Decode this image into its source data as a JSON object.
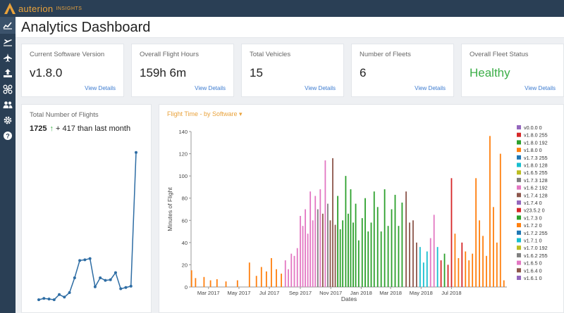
{
  "brand": {
    "name": "auterion",
    "sub": "INSIGHTS"
  },
  "page": {
    "title": "Analytics Dashboard"
  },
  "nav": [
    "analytics-icon",
    "flights-icon",
    "plane-icon",
    "upload-icon",
    "drone-icon",
    "users-icon",
    "gear-icon",
    "help-icon"
  ],
  "kpis": [
    {
      "label": "Current Software Version",
      "value": "v1.8.0",
      "link": "View Details"
    },
    {
      "label": "Overall Flight Hours",
      "value": "159h 6m",
      "link": "View Details"
    },
    {
      "label": "Total Vehicles",
      "value": "15",
      "link": "View Details"
    },
    {
      "label": "Number of Fleets",
      "value": "6",
      "link": "View Details"
    },
    {
      "label": "Overall Fleet Status",
      "value": "Healthy",
      "link": "View Details",
      "color": "#3cae48"
    }
  ],
  "flights": {
    "title": "Total Number of Flights",
    "total": "1725",
    "arrow": "↑",
    "delta": "+ 417 than last month",
    "color": "#2e6da4"
  },
  "flight_time": {
    "title": "Flight Time - by Software ▾",
    "accent": "#e9a23b"
  },
  "chart_data": [
    {
      "type": "line",
      "title": "Total Number of Flights",
      "values": [
        1,
        3,
        2,
        1,
        9,
        5,
        12,
        35,
        62,
        63,
        65,
        21,
        35,
        31,
        32,
        43,
        18,
        20,
        22,
        230
      ],
      "ylim": [
        0,
        245
      ]
    },
    {
      "type": "bar",
      "title": "Flight Time - by Software",
      "xlabel": "Dates",
      "ylabel": "Minutes of Flight",
      "ylim": [
        0,
        140
      ],
      "yticks": [
        0,
        20,
        40,
        60,
        80,
        100,
        120,
        140
      ],
      "x_ticks": [
        "Mar 2017",
        "May 2017",
        "Jul 2017",
        "Sep 2017",
        "Nov 2017",
        "Jan 2018",
        "Mar 2018",
        "May 2018",
        "Jul 2018"
      ],
      "x_range": [
        "2017-01-25",
        "2018-10-20"
      ],
      "legend_position": "right",
      "legend": [
        {
          "name": "v0.0.0 0",
          "color": "#9467bd"
        },
        {
          "name": "v1.8.0 255",
          "color": "#d62728"
        },
        {
          "name": "v1.8.0 192",
          "color": "#2ca02c"
        },
        {
          "name": "v1.8.0 0",
          "color": "#ff7f0e"
        },
        {
          "name": "v1.7.3 255",
          "color": "#1f77b4"
        },
        {
          "name": "v1.8.0 128",
          "color": "#17becf"
        },
        {
          "name": "v1.6.5 255",
          "color": "#bcbd22"
        },
        {
          "name": "v1.7.3 128",
          "color": "#7f7f7f"
        },
        {
          "name": "v1.6.2 192",
          "color": "#e377c2"
        },
        {
          "name": "v1.7.4 128",
          "color": "#8c564b"
        },
        {
          "name": "v1.7.4 0",
          "color": "#9467bd"
        },
        {
          "name": "v23.5.2 0",
          "color": "#d62728"
        },
        {
          "name": "v1.7.3 0",
          "color": "#2ca02c"
        },
        {
          "name": "v1.7.2 0",
          "color": "#ff7f0e"
        },
        {
          "name": "v1.7.2 255",
          "color": "#1f77b4"
        },
        {
          "name": "v1.7.1 0",
          "color": "#17becf"
        },
        {
          "name": "v1.7.0 192",
          "color": "#bcbd22"
        },
        {
          "name": "v1.6.2 255",
          "color": "#7f7f7f"
        },
        {
          "name": "v1.6.5 0",
          "color": "#e377c2"
        },
        {
          "name": "v1.6.4 0",
          "color": "#8c564b"
        },
        {
          "name": "v1.6.1 0",
          "color": "#9467bd"
        }
      ],
      "bars": [
        {
          "date": "2017-01-26",
          "value": 15,
          "series": "v1.7.2 0"
        },
        {
          "date": "2017-02-03",
          "value": 8,
          "series": "v1.7.2 0"
        },
        {
          "date": "2017-02-20",
          "value": 9,
          "series": "v1.7.2 0"
        },
        {
          "date": "2017-03-05",
          "value": 6,
          "series": "v1.7.2 0"
        },
        {
          "date": "2017-03-18",
          "value": 7,
          "series": "v1.7.2 0"
        },
        {
          "date": "2017-04-05",
          "value": 5,
          "series": "v1.7.2 0"
        },
        {
          "date": "2017-04-28",
          "value": 6,
          "series": "v1.7.2 0"
        },
        {
          "date": "2017-05-22",
          "value": 22,
          "series": "v1.7.2 0"
        },
        {
          "date": "2017-06-05",
          "value": 10,
          "series": "v1.7.2 0"
        },
        {
          "date": "2017-06-15",
          "value": 18,
          "series": "v1.7.2 0"
        },
        {
          "date": "2017-06-25",
          "value": 14,
          "series": "v1.7.2 0"
        },
        {
          "date": "2017-07-05",
          "value": 26,
          "series": "v1.7.2 0"
        },
        {
          "date": "2017-07-15",
          "value": 16,
          "series": "v1.7.2 0"
        },
        {
          "date": "2017-07-25",
          "value": 12,
          "series": "v1.7.2 0"
        },
        {
          "date": "2017-08-02",
          "value": 24,
          "series": "v1.6.2 192"
        },
        {
          "date": "2017-08-08",
          "value": 16,
          "series": "v1.6.2 192"
        },
        {
          "date": "2017-08-14",
          "value": 30,
          "series": "v1.6.2 192"
        },
        {
          "date": "2017-08-20",
          "value": 28,
          "series": "v1.6.2 192"
        },
        {
          "date": "2017-08-26",
          "value": 35,
          "series": "v1.6.2 192"
        },
        {
          "date": "2017-09-01",
          "value": 64,
          "series": "v1.6.2 192"
        },
        {
          "date": "2017-09-06",
          "value": 55,
          "series": "v1.6.2 192"
        },
        {
          "date": "2017-09-11",
          "value": 70,
          "series": "v1.6.2 192"
        },
        {
          "date": "2017-09-16",
          "value": 48,
          "series": "v1.6.2 192"
        },
        {
          "date": "2017-09-21",
          "value": 86,
          "series": "v1.6.2 192"
        },
        {
          "date": "2017-09-26",
          "value": 60,
          "series": "v1.6.2 192"
        },
        {
          "date": "2017-10-01",
          "value": 82,
          "series": "v1.6.2 192"
        },
        {
          "date": "2017-10-06",
          "value": 70,
          "series": "v1.7.3 128"
        },
        {
          "date": "2017-10-11",
          "value": 88,
          "series": "v1.6.2 192"
        },
        {
          "date": "2017-10-16",
          "value": 66,
          "series": "v1.7.4 128"
        },
        {
          "date": "2017-10-21",
          "value": 114,
          "series": "v1.6.2 192"
        },
        {
          "date": "2017-10-26",
          "value": 75,
          "series": "v1.7.3 128"
        },
        {
          "date": "2017-10-31",
          "value": 60,
          "series": "v1.7.4 128"
        },
        {
          "date": "2017-11-05",
          "value": 116,
          "series": "v1.7.4 128"
        },
        {
          "date": "2017-11-10",
          "value": 56,
          "series": "v1.7.4 128"
        },
        {
          "date": "2017-11-15",
          "value": 82,
          "series": "v1.7.3 0"
        },
        {
          "date": "2017-11-20",
          "value": 52,
          "series": "v1.7.3 0"
        },
        {
          "date": "2017-11-25",
          "value": 60,
          "series": "v1.7.3 0"
        },
        {
          "date": "2017-12-01",
          "value": 100,
          "series": "v1.7.3 0"
        },
        {
          "date": "2017-12-06",
          "value": 66,
          "series": "v1.7.3 0"
        },
        {
          "date": "2017-12-11",
          "value": 88,
          "series": "v1.7.3 0"
        },
        {
          "date": "2017-12-16",
          "value": 58,
          "series": "v1.7.3 0"
        },
        {
          "date": "2017-12-21",
          "value": 75,
          "series": "v1.7.3 0"
        },
        {
          "date": "2017-12-27",
          "value": 42,
          "series": "v1.7.3 0"
        },
        {
          "date": "2018-01-03",
          "value": 62,
          "series": "v1.7.3 0"
        },
        {
          "date": "2018-01-09",
          "value": 80,
          "series": "v1.7.3 0"
        },
        {
          "date": "2018-01-15",
          "value": 50,
          "series": "v1.7.3 0"
        },
        {
          "date": "2018-01-21",
          "value": 58,
          "series": "v1.7.3 0"
        },
        {
          "date": "2018-01-27",
          "value": 86,
          "series": "v1.7.3 0"
        },
        {
          "date": "2018-02-03",
          "value": 72,
          "series": "v1.7.3 0"
        },
        {
          "date": "2018-02-10",
          "value": 50,
          "series": "v1.7.3 0"
        },
        {
          "date": "2018-02-17",
          "value": 88,
          "series": "v1.7.3 0"
        },
        {
          "date": "2018-02-24",
          "value": 55,
          "series": "v1.7.3 0"
        },
        {
          "date": "2018-03-03",
          "value": 70,
          "series": "v1.7.3 0"
        },
        {
          "date": "2018-03-10",
          "value": 83,
          "series": "v1.7.3 0"
        },
        {
          "date": "2018-03-17",
          "value": 55,
          "series": "v1.7.3 0"
        },
        {
          "date": "2018-03-24",
          "value": 76,
          "series": "v1.7.3 0"
        },
        {
          "date": "2018-04-01",
          "value": 86,
          "series": "v1.7.4 128"
        },
        {
          "date": "2018-04-08",
          "value": 58,
          "series": "v1.7.4 128"
        },
        {
          "date": "2018-04-15",
          "value": 60,
          "series": "v1.7.4 128"
        },
        {
          "date": "2018-04-22",
          "value": 40,
          "series": "v1.7.4 128"
        },
        {
          "date": "2018-04-29",
          "value": 36,
          "series": "v1.8.0 128"
        },
        {
          "date": "2018-05-06",
          "value": 22,
          "series": "v1.8.0 128"
        },
        {
          "date": "2018-05-13",
          "value": 32,
          "series": "v1.8.0 128"
        },
        {
          "date": "2018-05-20",
          "value": 44,
          "series": "v1.6.2 192"
        },
        {
          "date": "2018-05-27",
          "value": 65,
          "series": "v1.6.2 192"
        },
        {
          "date": "2018-06-03",
          "value": 36,
          "series": "v1.8.0 128"
        },
        {
          "date": "2018-06-10",
          "value": 24,
          "series": "v1.8.0 255"
        },
        {
          "date": "2018-06-17",
          "value": 30,
          "series": "v1.8.0 192"
        },
        {
          "date": "2018-06-24",
          "value": 20,
          "series": "v1.8.0 255"
        },
        {
          "date": "2018-07-01",
          "value": 98,
          "series": "v1.8.0 255"
        },
        {
          "date": "2018-07-08",
          "value": 48,
          "series": "v1.8.0 0"
        },
        {
          "date": "2018-07-15",
          "value": 26,
          "series": "v1.8.0 0"
        },
        {
          "date": "2018-07-22",
          "value": 40,
          "series": "v1.8.0 255"
        },
        {
          "date": "2018-07-29",
          "value": 32,
          "series": "v1.8.0 0"
        },
        {
          "date": "2018-08-05",
          "value": 24,
          "series": "v1.8.0 0"
        },
        {
          "date": "2018-08-12",
          "value": 30,
          "series": "v1.8.0 0"
        },
        {
          "date": "2018-08-19",
          "value": 98,
          "series": "v1.8.0 0"
        },
        {
          "date": "2018-08-26",
          "value": 60,
          "series": "v1.8.0 0"
        },
        {
          "date": "2018-09-02",
          "value": 46,
          "series": "v1.8.0 0"
        },
        {
          "date": "2018-09-09",
          "value": 28,
          "series": "v1.8.0 0"
        },
        {
          "date": "2018-09-16",
          "value": 136,
          "series": "v1.8.0 0"
        },
        {
          "date": "2018-09-23",
          "value": 72,
          "series": "v1.8.0 0"
        },
        {
          "date": "2018-09-30",
          "value": 40,
          "series": "v1.8.0 0"
        },
        {
          "date": "2018-10-07",
          "value": 120,
          "series": "v1.8.0 0"
        },
        {
          "date": "2018-10-14",
          "value": 6,
          "series": "v1.8.0 0"
        }
      ]
    }
  ]
}
